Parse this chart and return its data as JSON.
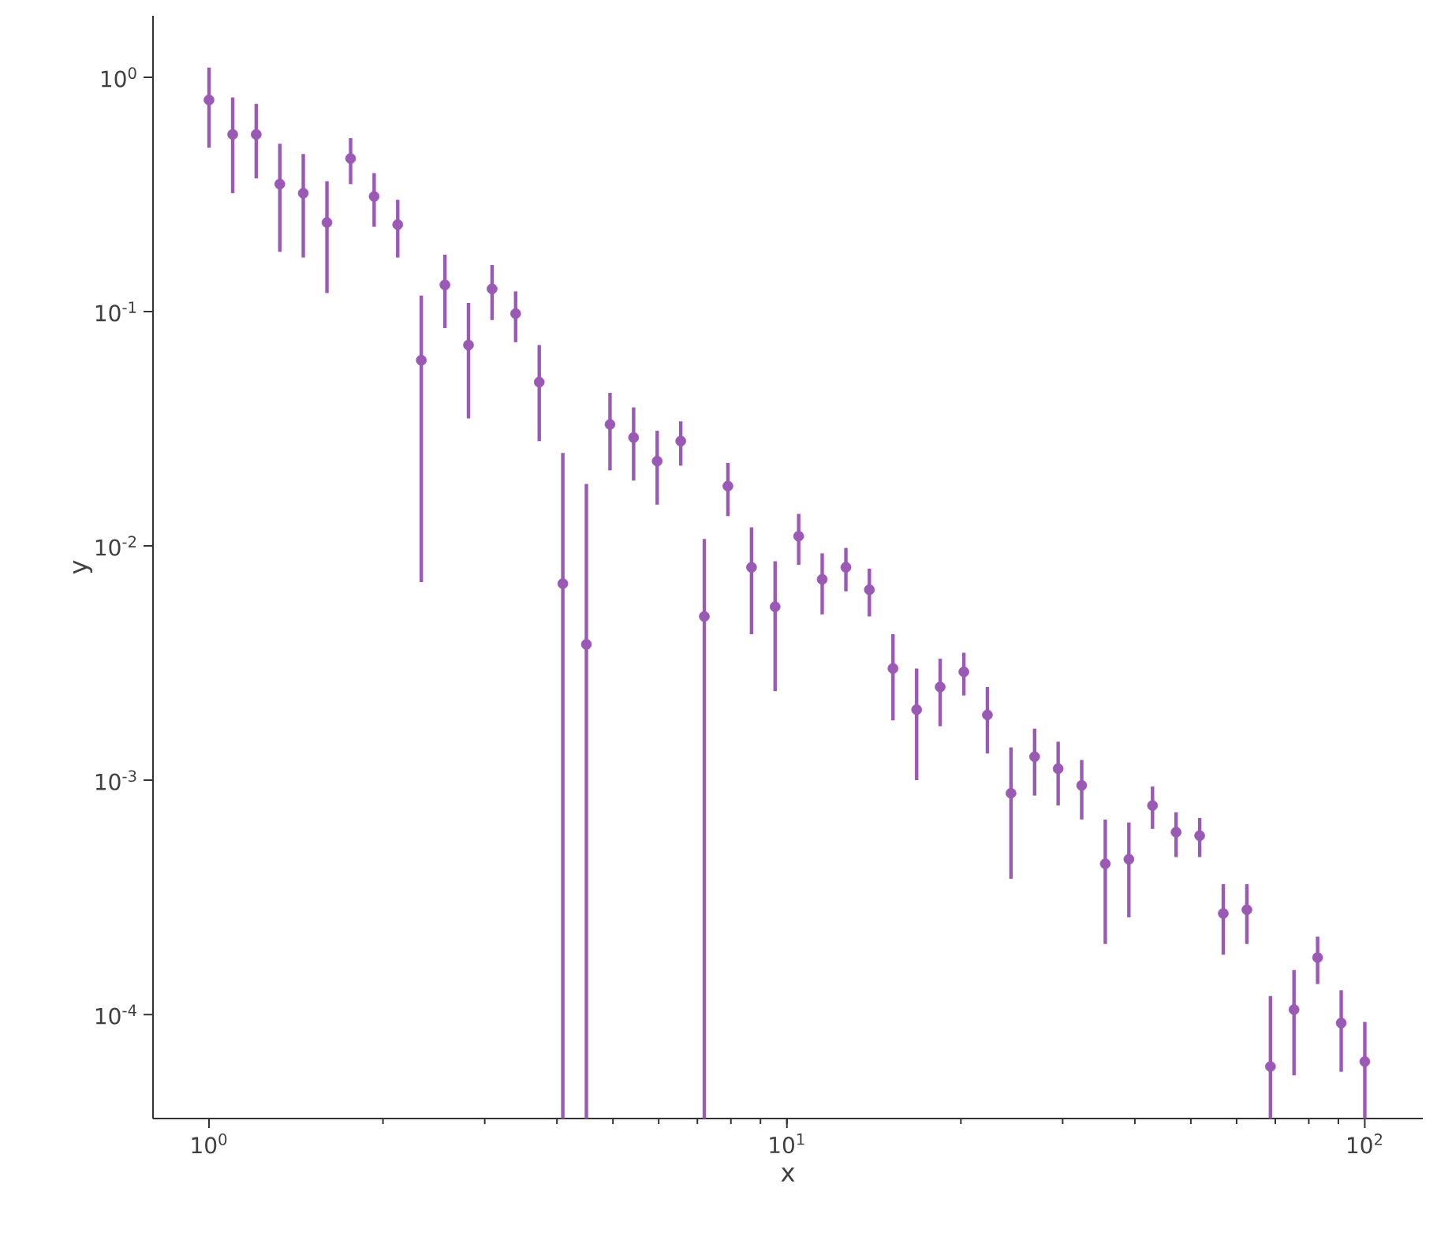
{
  "chart_data": {
    "type": "scatter",
    "xlabel": "x",
    "ylabel": "y",
    "log": "xy",
    "xlim": [
      0.8,
      126
    ],
    "ylim": [
      3.6e-05,
      1.83
    ],
    "xticks": [
      {
        "value": 1,
        "label": "10$^{0}$"
      },
      {
        "value": 10,
        "label": "10$^{1}$"
      },
      {
        "value": 100,
        "label": "10$^{2}$"
      }
    ],
    "yticks": [
      {
        "value": 0.0001,
        "label": "10$^{-4}$"
      },
      {
        "value": 0.001,
        "label": "10$^{-3}$"
      },
      {
        "value": 0.01,
        "label": "10$^{-2}$"
      },
      {
        "value": 0.1,
        "label": "10$^{-1}$"
      },
      {
        "value": 1,
        "label": "10$^{0}$"
      }
    ],
    "x": [
      1.0,
      1.099,
      1.207,
      1.326,
      1.456,
      1.6,
      1.758,
      1.931,
      2.121,
      2.33,
      2.56,
      2.812,
      3.089,
      3.393,
      3.728,
      4.095,
      4.498,
      4.942,
      5.429,
      5.964,
      6.551,
      7.197,
      7.906,
      8.685,
      9.541,
      10.48,
      11.51,
      12.65,
      13.89,
      15.26,
      16.77,
      18.42,
      20.24,
      22.23,
      24.42,
      26.83,
      29.47,
      32.37,
      35.56,
      39.07,
      42.92,
      47.15,
      51.79,
      56.9,
      62.51,
      68.66,
      75.43,
      82.86,
      91.03,
      100.0
    ],
    "series": [
      {
        "color": "#9b59b6",
        "values": [
          0.8,
          0.57,
          0.57,
          0.35,
          0.32,
          0.24,
          0.45,
          0.31,
          0.235,
          0.062,
          0.13,
          0.072,
          0.125,
          0.098,
          0.05,
          0.0069,
          0.0038,
          0.033,
          0.029,
          0.023,
          0.028,
          0.005,
          0.018,
          0.0081,
          0.0055,
          0.011,
          0.0072,
          0.0081,
          0.0065,
          0.003,
          0.002,
          0.0025,
          0.0029,
          0.0019,
          0.00088,
          0.00126,
          0.00112,
          0.00095,
          0.00044,
          0.00046,
          0.00078,
          0.0006,
          0.00058,
          0.00027,
          0.00028,
          6e-05,
          0.000105,
          0.000175,
          9.2e-05,
          6.3e-05
        ],
        "errors": [
          0.3,
          0.25,
          0.2,
          0.17,
          0.15,
          0.12,
          0.1,
          0.08,
          0.065,
          0.055,
          0.045,
          0.037,
          0.033,
          0.024,
          0.022,
          [
            3.6e-05,
            0.0249
          ],
          [
            3.6e-05,
            0.0184
          ],
          0.012,
          0.01,
          0.008,
          0.006,
          [
            3.6e-05,
            0.0107
          ],
          0.0046,
          0.0039,
          0.0031,
          0.0027,
          0.0021,
          0.0017,
          0.0015,
          0.0012,
          0.001,
          0.0008,
          0.0006,
          0.0006,
          0.0005,
          0.0004,
          0.00034,
          0.00027,
          0.00024,
          0.0002,
          0.00016,
          0.00013,
          0.00011,
          9e-05,
          8e-05,
          [
            3.6e-05,
            0.00012
          ],
          5e-05,
          4e-05,
          3.5e-05,
          3e-05
        ]
      }
    ]
  }
}
